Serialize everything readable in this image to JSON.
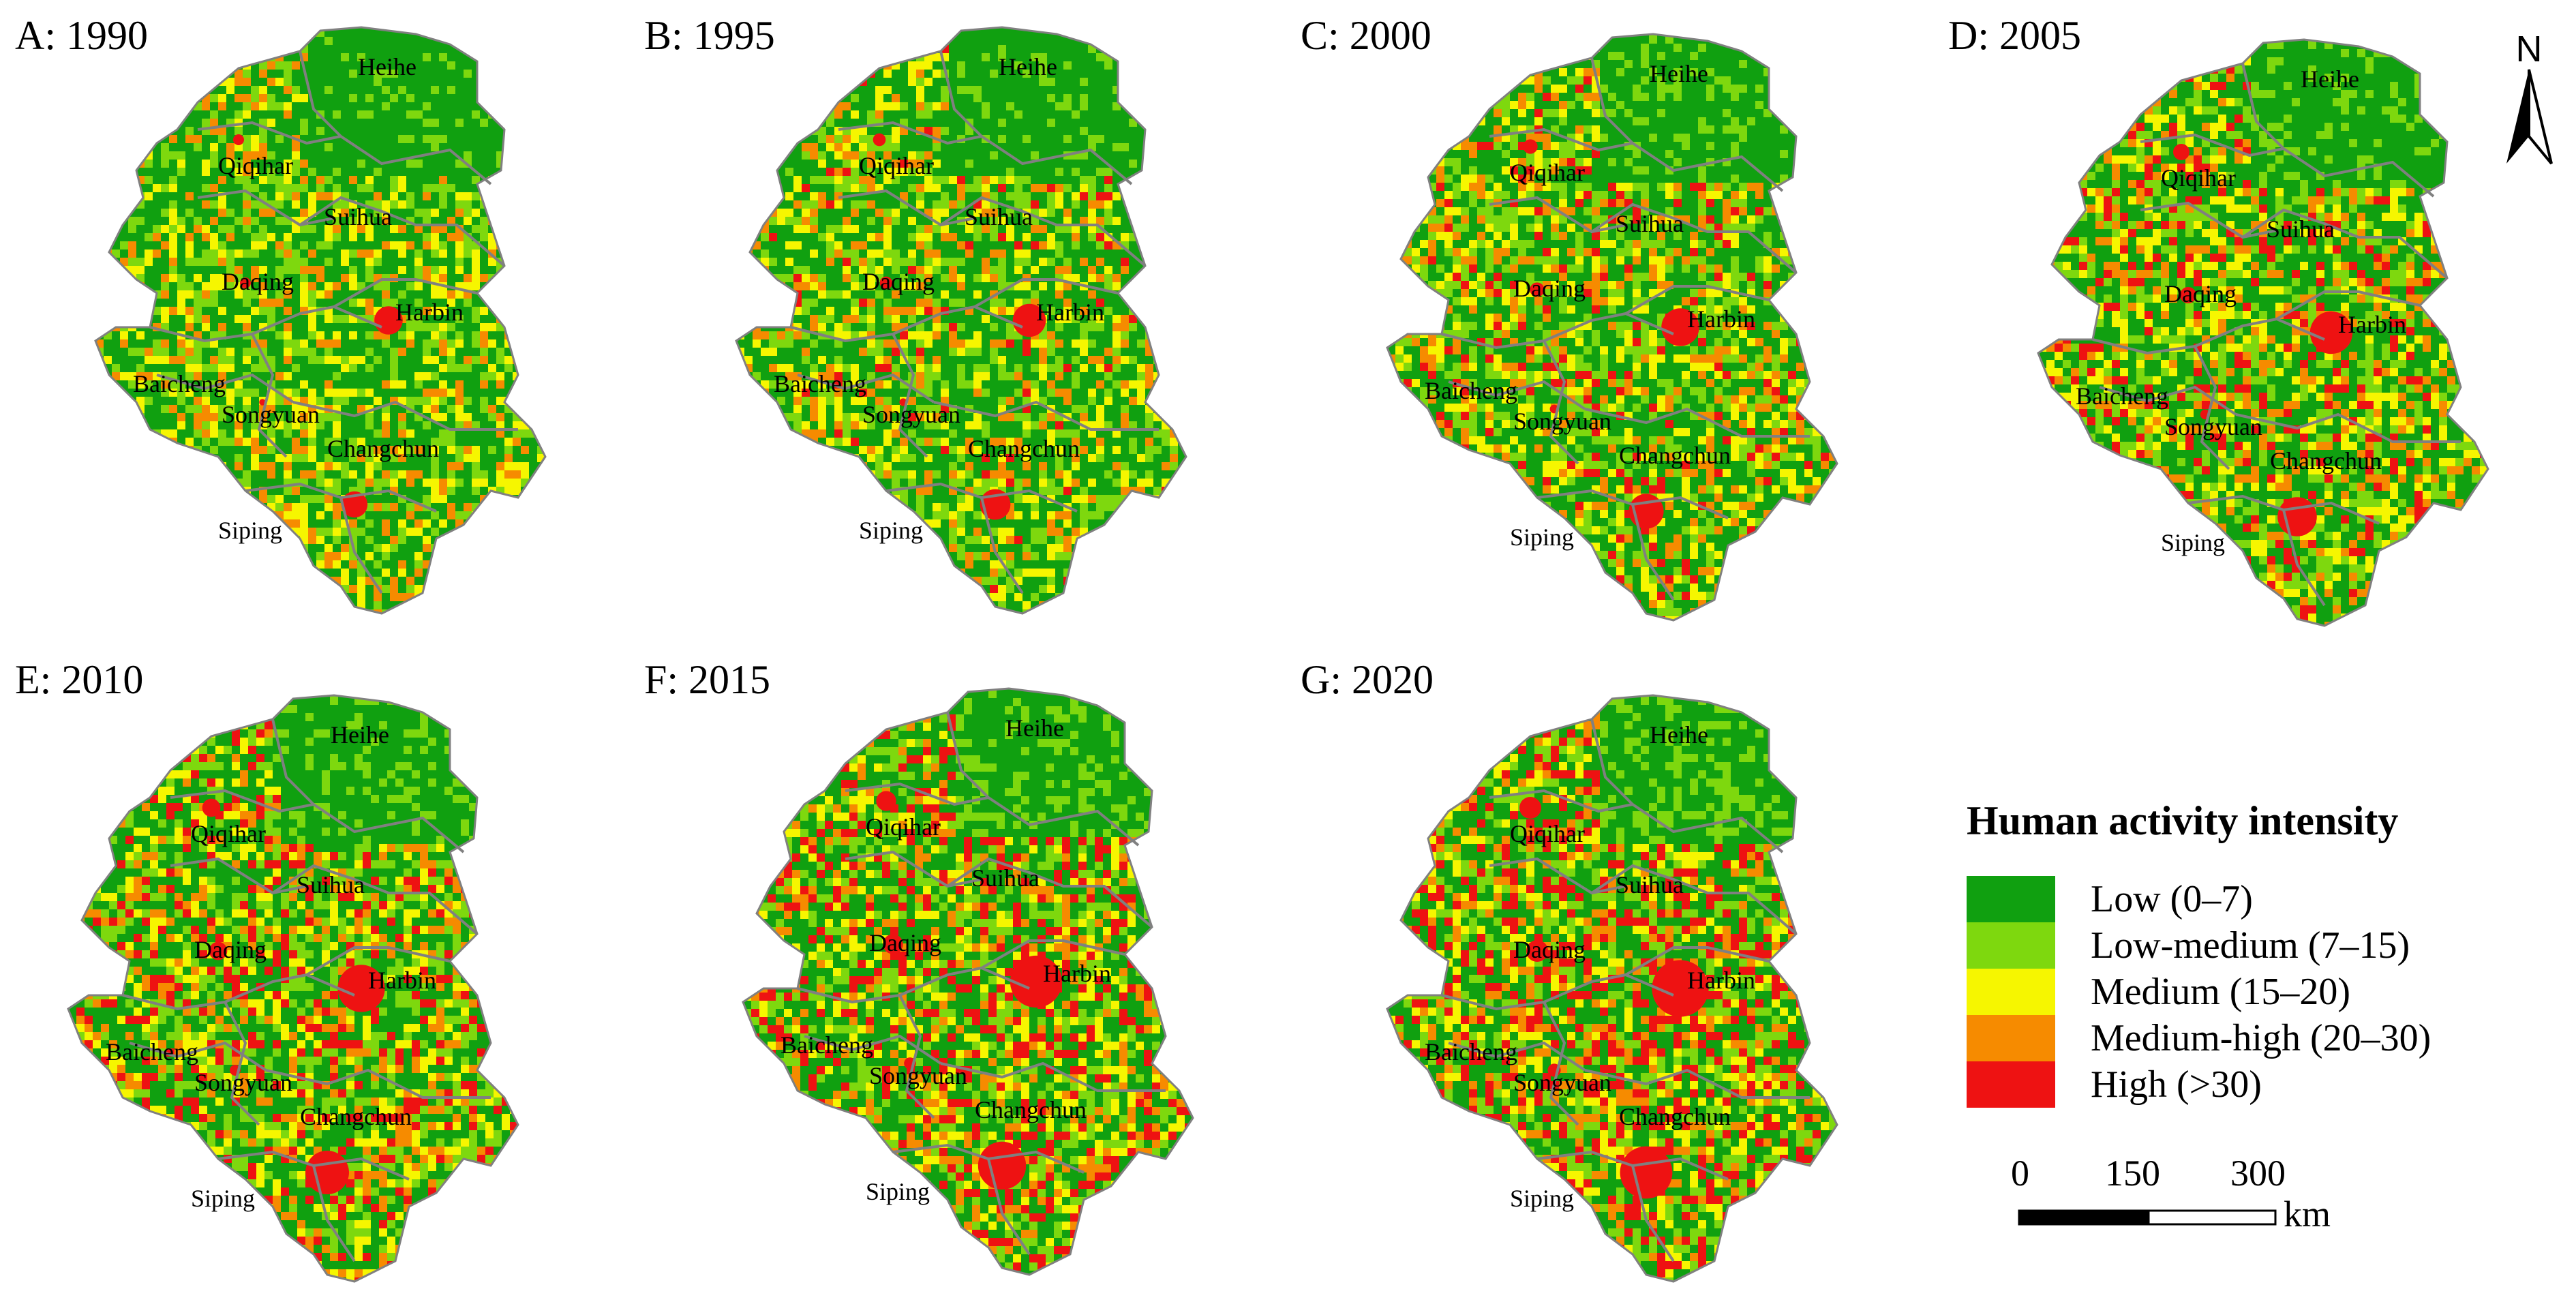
{
  "panels": [
    {
      "title": "A: 1990",
      "year": 1990
    },
    {
      "title": "B: 1995",
      "year": 1995
    },
    {
      "title": "C: 2000",
      "year": 2000
    },
    {
      "title": "D: 2005",
      "year": 2005
    },
    {
      "title": "E: 2010",
      "year": 2010
    },
    {
      "title": "F: 2015",
      "year": 2015
    },
    {
      "title": "G: 2020",
      "year": 2020
    }
  ],
  "cities": [
    "Heihe",
    "Qiqihar",
    "Suihua",
    "Daqing",
    "Harbin",
    "Baicheng",
    "Songyuan",
    "Changchun",
    "Siping"
  ],
  "north_arrow": {
    "label": "N"
  },
  "legend": {
    "title": "Human activity intensity",
    "items": [
      {
        "label": "Low (0–7)",
        "color": "#10a010"
      },
      {
        "label": "Low-medium (7–15)",
        "color": "#7ed80e"
      },
      {
        "label": "Medium (15–20)",
        "color": "#f6f600"
      },
      {
        "label": "Medium-high (20–30)",
        "color": "#f68b00"
      },
      {
        "label": "High (>30)",
        "color": "#ee1212"
      }
    ]
  },
  "scale_bar": {
    "ticks": [
      "0",
      "150",
      "300"
    ],
    "unit": "km"
  },
  "colors": {
    "low": "#10a010",
    "low_medium": "#7ed80e",
    "medium": "#f6f600",
    "medium_high": "#f68b00",
    "high": "#ee1212",
    "boundary": "#808080"
  }
}
